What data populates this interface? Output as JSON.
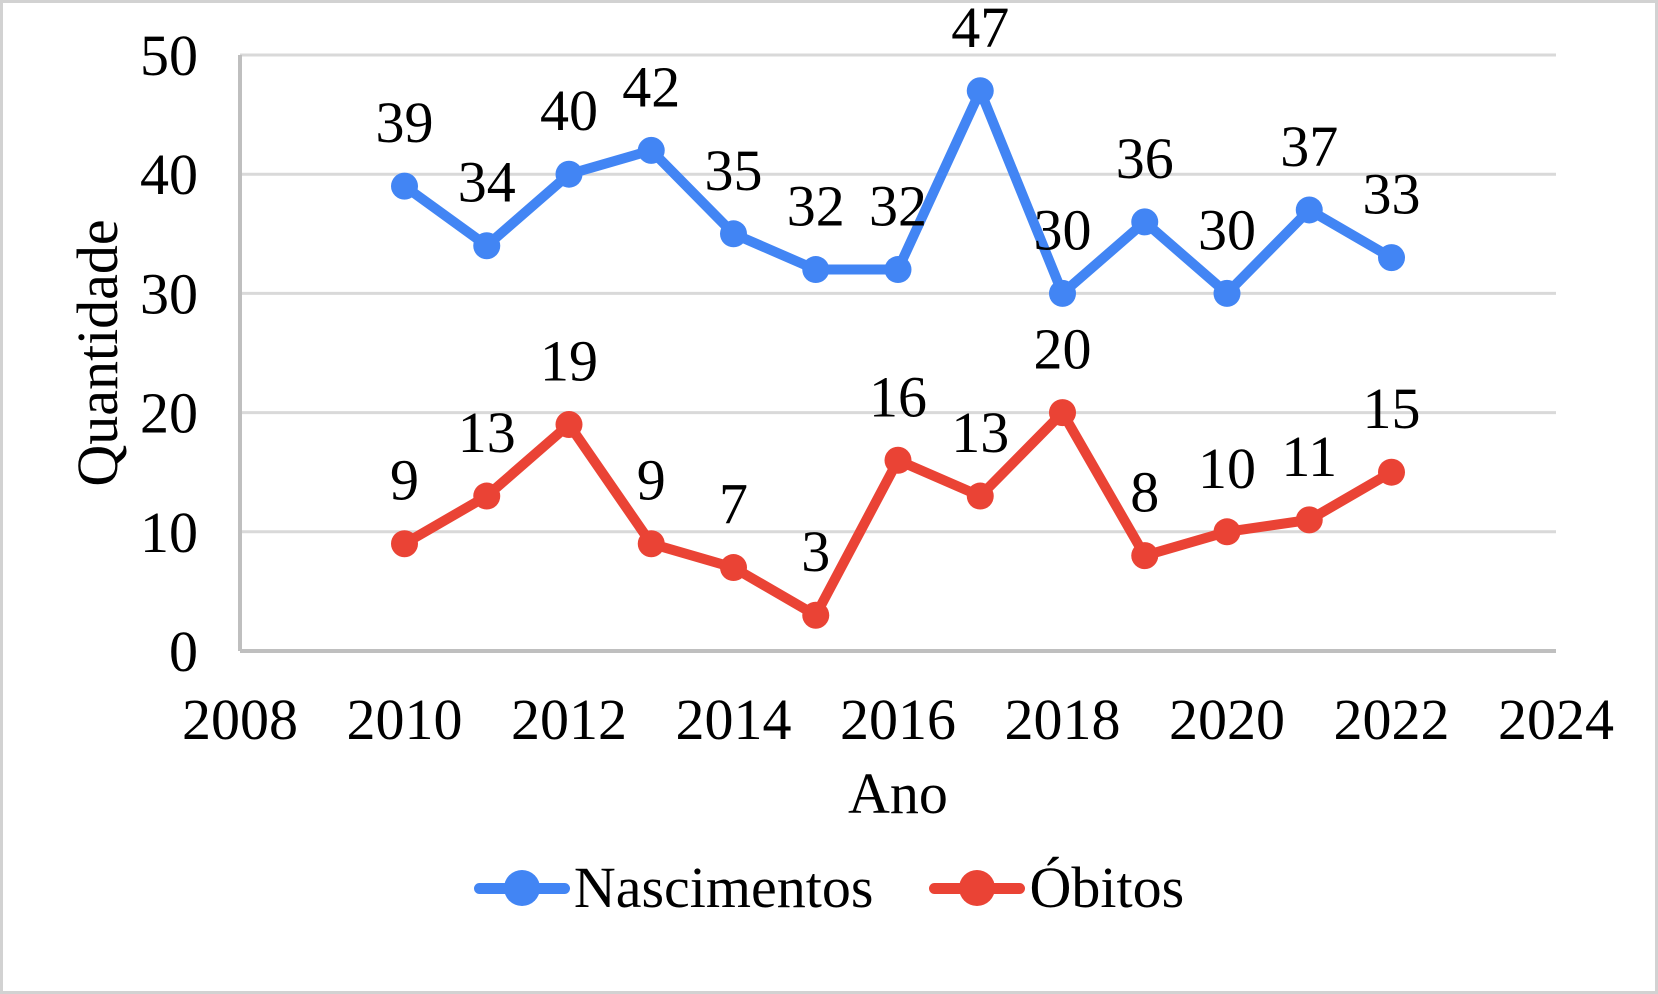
{
  "chart_data": {
    "type": "line",
    "title": "",
    "xlabel": "Ano",
    "ylabel": "Quantidade",
    "x": [
      2010,
      2011,
      2012,
      2013,
      2014,
      2015,
      2016,
      2017,
      2018,
      2019,
      2020,
      2021,
      2022
    ],
    "series": [
      {
        "name": "Nascimentos",
        "color": "#4285F4",
        "values": [
          39,
          34,
          40,
          42,
          35,
          32,
          32,
          47,
          30,
          36,
          30,
          37,
          33
        ]
      },
      {
        "name": "Óbitos",
        "color": "#EA4335",
        "values": [
          9,
          13,
          19,
          9,
          7,
          3,
          16,
          13,
          20,
          8,
          10,
          11,
          15
        ]
      }
    ],
    "xlim": [
      2008,
      2024
    ],
    "ylim": [
      0,
      50
    ],
    "x_ticks": [
      2008,
      2010,
      2012,
      2014,
      2016,
      2018,
      2020,
      2022,
      2024
    ],
    "y_ticks": [
      0,
      10,
      20,
      30,
      40,
      50
    ],
    "grid": "horizontal",
    "legend_position": "bottom",
    "data_labels": "above-points"
  },
  "colors": {
    "background": "#FFFFFF",
    "frame_border": "#D2D2D2",
    "gridline": "#D9D9D9",
    "axis_line": "#BFBFBF",
    "text": "#000000"
  }
}
